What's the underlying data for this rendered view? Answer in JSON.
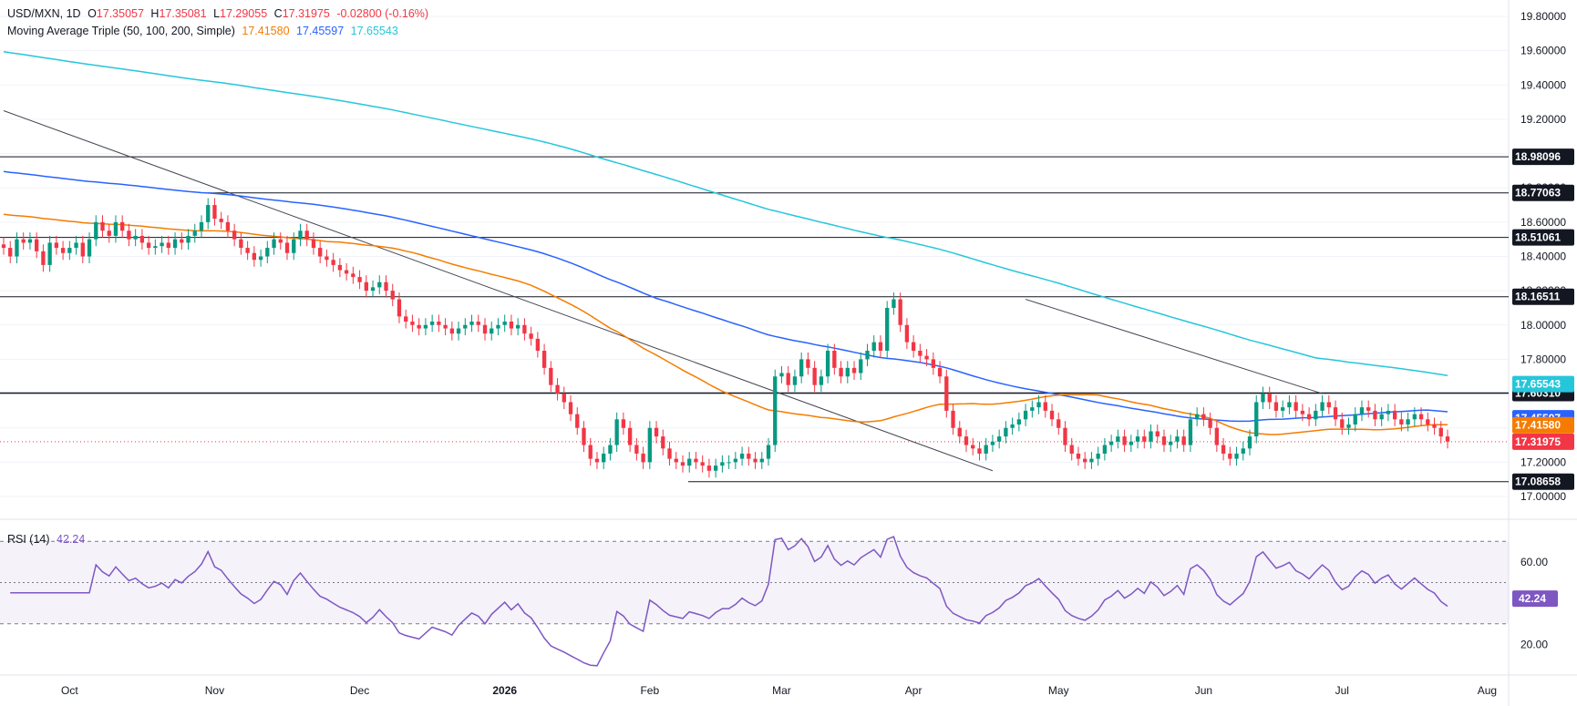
{
  "header": {
    "symbol": "USD/MXN, 1D",
    "o_label": "O",
    "o_value": "17.35057",
    "h_label": "H",
    "h_value": "17.35081",
    "l_label": "L",
    "l_value": "17.29055",
    "c_label": "C",
    "c_value": "17.31975",
    "change": "-0.02800 (-0.16%)",
    "ma_title": "Moving Average Triple (50, 100, 200, Simple)",
    "ma50": "17.41580",
    "ma100": "17.45597",
    "ma200": "17.65543",
    "rsi_title": "RSI (14)",
    "rsi_value": "42.24"
  },
  "colors": {
    "up": "#089981",
    "down": "#f23645",
    "ma50": "#f57c00",
    "ma100": "#2962ff",
    "ma200": "#26c6da",
    "rsi": "#7e57c2",
    "price_line": "#f23645",
    "hline": "#131722"
  },
  "chart_data": [
    {
      "type": "candlestick",
      "title": "USD/MXN, 1D",
      "ylim": [
        17.0,
        19.8
      ],
      "y_ticks": [
        "17.00000",
        "17.20000",
        "17.40000",
        "17.60000",
        "17.80000",
        "18.00000",
        "18.20000",
        "18.40000",
        "18.60000",
        "18.80000",
        "19.00000",
        "19.20000",
        "19.40000",
        "19.60000",
        "19.80000"
      ],
      "x_ticks": [
        "Oct",
        "Nov",
        "Dec",
        "2026",
        "Feb",
        "Mar",
        "Apr",
        "May",
        "Jun",
        "Jul",
        "Aug"
      ],
      "price_tags": {
        "ma200": "17.65543",
        "resist": "17.60310",
        "ma100": "17.45597",
        "ma50": "17.41580",
        "last": "17.31975"
      },
      "horizontal_levels": [
        "18.98096",
        "18.77063",
        "18.51061",
        "18.16511",
        "17.60310",
        "17.08658"
      ],
      "closes": [
        18.45,
        18.4,
        18.5,
        18.48,
        18.5,
        18.43,
        18.35,
        18.48,
        18.45,
        18.42,
        18.45,
        18.48,
        18.4,
        18.5,
        18.6,
        18.55,
        18.52,
        18.6,
        18.55,
        18.5,
        18.52,
        18.48,
        18.45,
        18.46,
        18.48,
        18.45,
        18.5,
        18.48,
        18.52,
        18.55,
        18.6,
        18.7,
        18.62,
        18.6,
        18.55,
        18.5,
        18.45,
        18.42,
        18.38,
        18.4,
        18.45,
        18.5,
        18.48,
        18.42,
        18.5,
        18.55,
        18.5,
        18.45,
        18.4,
        18.38,
        18.35,
        18.32,
        18.3,
        18.28,
        18.25,
        18.2,
        18.22,
        18.25,
        18.2,
        18.15,
        18.05,
        18.02,
        18.0,
        17.98,
        18.0,
        18.02,
        18.0,
        17.98,
        17.95,
        17.98,
        18.0,
        18.02,
        18.0,
        17.95,
        17.98,
        18.0,
        18.02,
        17.98,
        18.0,
        17.95,
        17.92,
        17.85,
        17.75,
        17.65,
        17.6,
        17.55,
        17.48,
        17.4,
        17.3,
        17.22,
        17.2,
        17.25,
        17.3,
        17.45,
        17.4,
        17.3,
        17.25,
        17.2,
        17.4,
        17.35,
        17.28,
        17.22,
        17.2,
        17.18,
        17.22,
        17.2,
        17.18,
        17.15,
        17.18,
        17.2,
        17.2,
        17.22,
        17.25,
        17.22,
        17.2,
        17.22,
        17.3,
        17.7,
        17.72,
        17.65,
        17.7,
        17.8,
        17.75,
        17.65,
        17.7,
        17.85,
        17.75,
        17.7,
        17.75,
        17.72,
        17.8,
        17.85,
        17.9,
        17.85,
        18.1,
        18.15,
        18.0,
        17.9,
        17.85,
        17.82,
        17.8,
        17.75,
        17.7,
        17.5,
        17.4,
        17.35,
        17.3,
        17.28,
        17.25,
        17.3,
        17.32,
        17.35,
        17.4,
        17.42,
        17.45,
        17.5,
        17.52,
        17.55,
        17.5,
        17.45,
        17.4,
        17.3,
        17.25,
        17.22,
        17.2,
        17.22,
        17.25,
        17.3,
        17.32,
        17.35,
        17.3,
        17.32,
        17.35,
        17.32,
        17.38,
        17.35,
        17.3,
        17.32,
        17.35,
        17.3,
        17.45,
        17.48,
        17.45,
        17.4,
        17.3,
        17.25,
        17.22,
        17.25,
        17.28,
        17.35,
        17.55,
        17.6,
        17.55,
        17.5,
        17.52,
        17.55,
        17.5,
        17.48,
        17.45,
        17.5,
        17.55,
        17.52,
        17.45,
        17.4,
        17.42,
        17.48,
        17.52,
        17.5,
        17.45,
        17.48,
        17.5,
        17.45,
        17.42,
        17.45,
        17.48,
        17.45,
        17.42,
        17.4,
        17.35,
        17.32
      ]
    },
    {
      "type": "line",
      "title": "RSI (14)",
      "ylim": [
        10,
        75
      ],
      "y_ticks": [
        "20.00",
        "60.00"
      ],
      "levels": [
        70,
        50,
        30
      ],
      "last_value": "42.24"
    }
  ]
}
